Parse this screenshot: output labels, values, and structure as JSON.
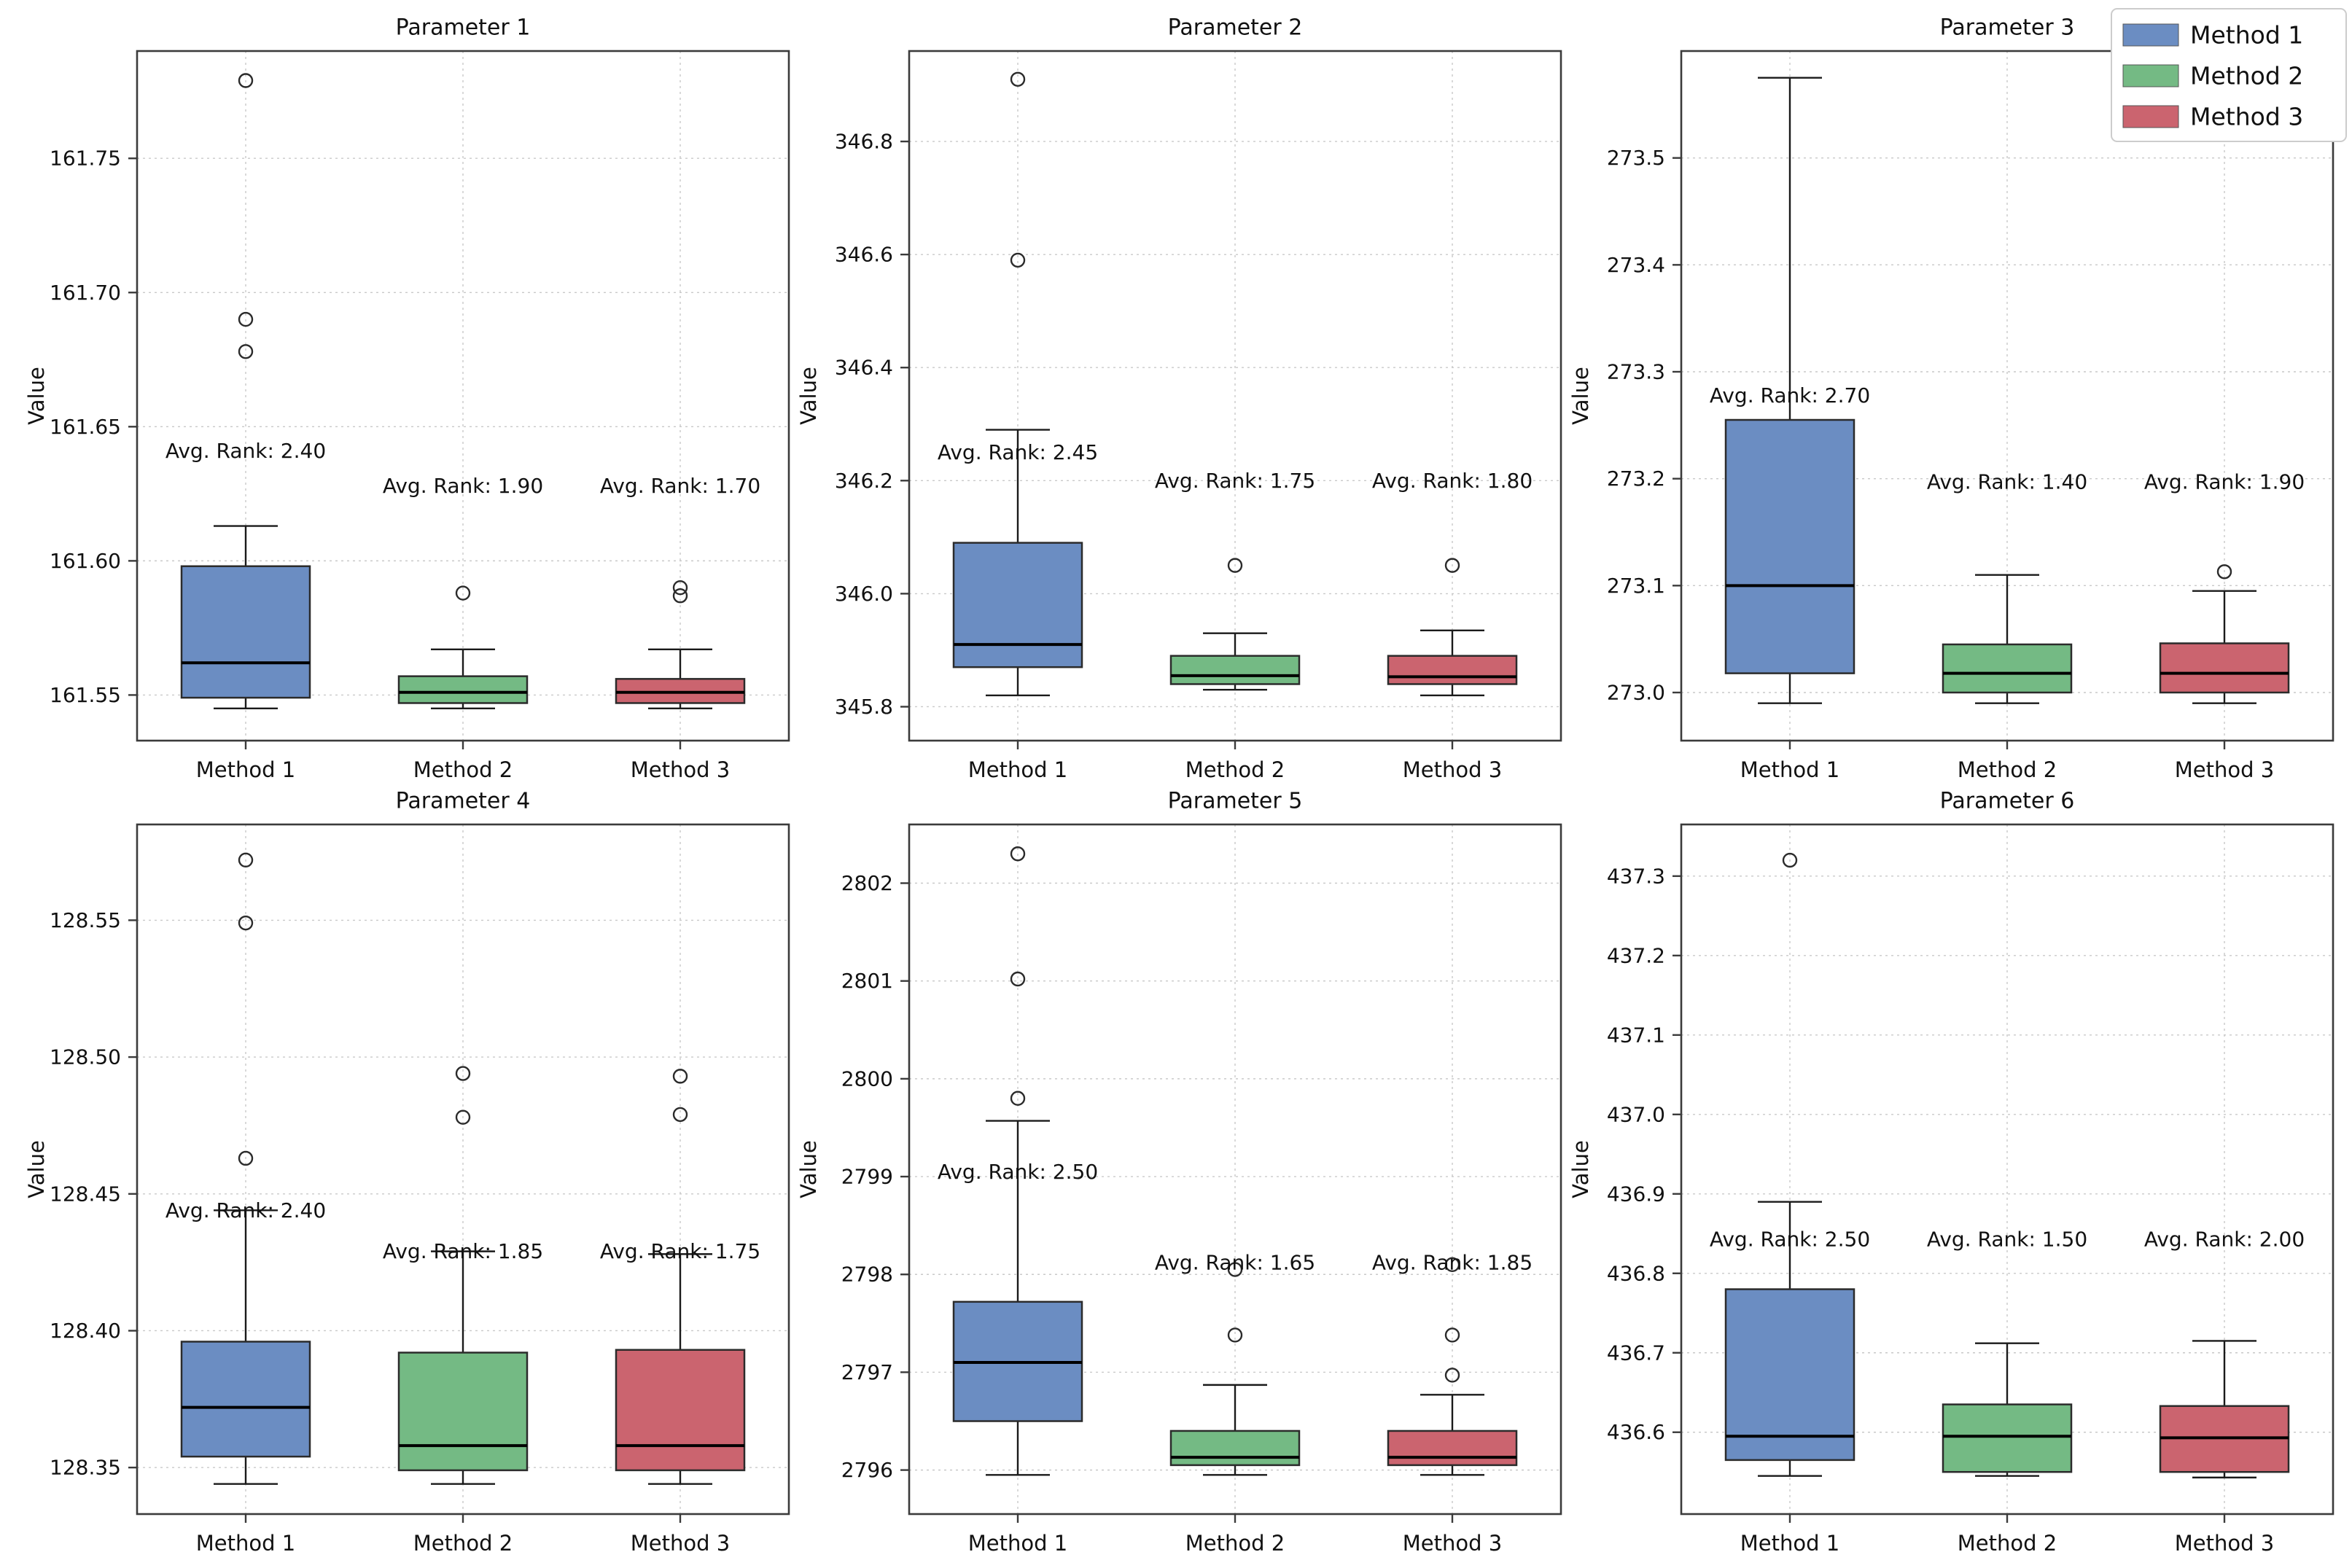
{
  "figure": {
    "background": "#ffffff",
    "ylabel": "Value"
  },
  "legend": {
    "position": "top-right",
    "items": [
      {
        "label": "Method 1",
        "color": "#6b8dc2"
      },
      {
        "label": "Method 2",
        "color": "#74ba84"
      },
      {
        "label": "Method 3",
        "color": "#cb646f"
      }
    ]
  },
  "style_colors": {
    "box_edge": "#2b2b2b",
    "median": "#000000",
    "whisker": "#1a1a1a",
    "spine": "#3b3b3b",
    "grid": "#c9c9c9",
    "legend_border": "#cccccc"
  },
  "chart_data": [
    {
      "type": "boxplot",
      "title": "Parameter 1",
      "ylabel": "Value",
      "categories": [
        "Method 1",
        "Method 2",
        "Method 3"
      ],
      "ylim": [
        161.533,
        161.79
      ],
      "yticks": [
        "161.55",
        "161.60",
        "161.65",
        "161.70",
        "161.75"
      ],
      "grid": true,
      "legend_visible": false,
      "boxes": [
        {
          "method": "Method 1",
          "whislo": 161.545,
          "q1": 161.549,
          "med": 161.562,
          "q3": 161.598,
          "whishi": 161.613,
          "fliers": [
            161.678,
            161.69,
            161.779
          ],
          "annotation": {
            "text": "Avg. Rank: 2.40",
            "y": 161.641
          }
        },
        {
          "method": "Method 2",
          "whislo": 161.545,
          "q1": 161.547,
          "med": 161.551,
          "q3": 161.557,
          "whishi": 161.567,
          "fliers": [
            161.588
          ],
          "annotation": {
            "text": "Avg. Rank: 1.90",
            "y": 161.628
          }
        },
        {
          "method": "Method 3",
          "whislo": 161.545,
          "q1": 161.547,
          "med": 161.551,
          "q3": 161.556,
          "whishi": 161.567,
          "fliers": [
            161.587,
            161.59
          ],
          "annotation": {
            "text": "Avg. Rank: 1.70",
            "y": 161.628
          }
        }
      ]
    },
    {
      "type": "boxplot",
      "title": "Parameter 2",
      "ylabel": "Value",
      "categories": [
        "Method 1",
        "Method 2",
        "Method 3"
      ],
      "ylim": [
        345.74,
        346.96
      ],
      "yticks": [
        "345.8",
        "346.0",
        "346.2",
        "346.4",
        "346.6",
        "346.8"
      ],
      "grid": true,
      "legend_visible": false,
      "boxes": [
        {
          "method": "Method 1",
          "whislo": 345.82,
          "q1": 345.87,
          "med": 345.91,
          "q3": 346.09,
          "whishi": 346.29,
          "fliers": [
            346.59,
            346.91
          ],
          "annotation": {
            "text": "Avg. Rank: 2.45",
            "y": 346.25
          }
        },
        {
          "method": "Method 2",
          "whislo": 345.83,
          "q1": 345.84,
          "med": 345.855,
          "q3": 345.89,
          "whishi": 345.93,
          "fliers": [
            346.05
          ],
          "annotation": {
            "text": "Avg. Rank: 1.75",
            "y": 346.2
          }
        },
        {
          "method": "Method 3",
          "whislo": 345.82,
          "q1": 345.84,
          "med": 345.853,
          "q3": 345.89,
          "whishi": 345.935,
          "fliers": [
            346.05
          ],
          "annotation": {
            "text": "Avg. Rank: 1.80",
            "y": 346.2
          }
        }
      ]
    },
    {
      "type": "boxplot",
      "title": "Parameter 3",
      "ylabel": "Value",
      "categories": [
        "Method 1",
        "Method 2",
        "Method 3"
      ],
      "ylim": [
        272.955,
        273.6
      ],
      "yticks": [
        "273.0",
        "273.1",
        "273.2",
        "273.3",
        "273.4",
        "273.5"
      ],
      "grid": true,
      "legend_visible": true,
      "boxes": [
        {
          "method": "Method 1",
          "whislo": 272.99,
          "q1": 273.018,
          "med": 273.1,
          "q3": 273.255,
          "whishi": 273.575,
          "fliers": [],
          "annotation": {
            "text": "Avg. Rank: 2.70",
            "y": 273.278
          }
        },
        {
          "method": "Method 2",
          "whislo": 272.99,
          "q1": 273.0,
          "med": 273.018,
          "q3": 273.045,
          "whishi": 273.11,
          "fliers": [],
          "annotation": {
            "text": "Avg. Rank: 1.40",
            "y": 273.197
          }
        },
        {
          "method": "Method 3",
          "whislo": 272.99,
          "q1": 273.0,
          "med": 273.018,
          "q3": 273.046,
          "whishi": 273.095,
          "fliers": [
            273.113
          ],
          "annotation": {
            "text": "Avg. Rank: 1.90",
            "y": 273.197
          }
        }
      ]
    },
    {
      "type": "boxplot",
      "title": "Parameter 4",
      "ylabel": "Value",
      "categories": [
        "Method 1",
        "Method 2",
        "Method 3"
      ],
      "ylim": [
        128.333,
        128.585
      ],
      "yticks": [
        "128.35",
        "128.40",
        "128.45",
        "128.50",
        "128.55"
      ],
      "grid": true,
      "legend_visible": false,
      "boxes": [
        {
          "method": "Method 1",
          "whislo": 128.344,
          "q1": 128.354,
          "med": 128.372,
          "q3": 128.396,
          "whishi": 128.444,
          "fliers": [
            128.463,
            128.549,
            128.572
          ],
          "annotation": {
            "text": "Avg. Rank: 2.40",
            "y": 128.444
          }
        },
        {
          "method": "Method 2",
          "whislo": 128.344,
          "q1": 128.349,
          "med": 128.358,
          "q3": 128.392,
          "whishi": 128.429,
          "fliers": [
            128.478,
            128.494
          ],
          "annotation": {
            "text": "Avg. Rank: 1.85",
            "y": 128.429
          }
        },
        {
          "method": "Method 3",
          "whislo": 128.344,
          "q1": 128.349,
          "med": 128.358,
          "q3": 128.393,
          "whishi": 128.428,
          "fliers": [
            128.479,
            128.493
          ],
          "annotation": {
            "text": "Avg. Rank: 1.75",
            "y": 128.429
          }
        }
      ]
    },
    {
      "type": "boxplot",
      "title": "Parameter 5",
      "ylabel": "Value",
      "categories": [
        "Method 1",
        "Method 2",
        "Method 3"
      ],
      "ylim": [
        2795.55,
        2802.6
      ],
      "yticks": [
        "2796",
        "2797",
        "2798",
        "2799",
        "2800",
        "2801",
        "2802"
      ],
      "grid": true,
      "legend_visible": false,
      "boxes": [
        {
          "method": "Method 1",
          "whislo": 2795.95,
          "q1": 2796.5,
          "med": 2797.1,
          "q3": 2797.72,
          "whishi": 2799.57,
          "fliers": [
            2799.8,
            2801.02,
            2802.3
          ],
          "annotation": {
            "text": "Avg. Rank: 2.50",
            "y": 2799.05
          }
        },
        {
          "method": "Method 2",
          "whislo": 2795.95,
          "q1": 2796.05,
          "med": 2796.13,
          "q3": 2796.4,
          "whishi": 2796.87,
          "fliers": [
            2797.38,
            2798.05
          ],
          "annotation": {
            "text": "Avg. Rank: 1.65",
            "y": 2798.12
          }
        },
        {
          "method": "Method 3",
          "whislo": 2795.95,
          "q1": 2796.05,
          "med": 2796.13,
          "q3": 2796.4,
          "whishi": 2796.77,
          "fliers": [
            2796.97,
            2797.38,
            2798.1
          ],
          "annotation": {
            "text": "Avg. Rank: 1.85",
            "y": 2798.12
          }
        }
      ]
    },
    {
      "type": "boxplot",
      "title": "Parameter 6",
      "ylabel": "Value",
      "categories": [
        "Method 1",
        "Method 2",
        "Method 3"
      ],
      "ylim": [
        436.497,
        437.365
      ],
      "yticks": [
        "436.6",
        "436.7",
        "436.8",
        "436.9",
        "437.0",
        "437.1",
        "437.2",
        "437.3"
      ],
      "grid": true,
      "legend_visible": false,
      "boxes": [
        {
          "method": "Method 1",
          "whislo": 436.545,
          "q1": 436.565,
          "med": 436.595,
          "q3": 436.78,
          "whishi": 436.89,
          "fliers": [
            437.32
          ],
          "annotation": {
            "text": "Avg. Rank: 2.50",
            "y": 436.843
          }
        },
        {
          "method": "Method 2",
          "whislo": 436.545,
          "q1": 436.55,
          "med": 436.595,
          "q3": 436.635,
          "whishi": 436.712,
          "fliers": [],
          "annotation": {
            "text": "Avg. Rank: 1.50",
            "y": 436.843
          }
        },
        {
          "method": "Method 3",
          "whislo": 436.543,
          "q1": 436.55,
          "med": 436.593,
          "q3": 436.633,
          "whishi": 436.715,
          "fliers": [],
          "annotation": {
            "text": "Avg. Rank: 2.00",
            "y": 436.843
          }
        }
      ]
    }
  ]
}
